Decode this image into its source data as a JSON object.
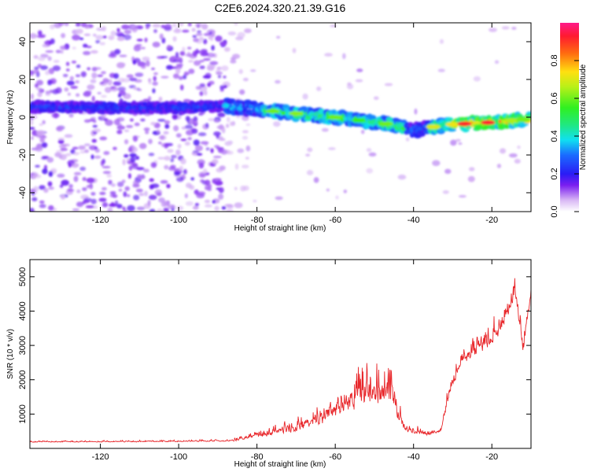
{
  "title": "C2E6.2024.320.21.39.G16",
  "chart_data": [
    {
      "type": "heatmap",
      "xlabel": "Height of straight line (km)",
      "ylabel": "Frequency (Hz)",
      "xlim": [
        -138,
        -10
      ],
      "ylim": [
        -50,
        50
      ],
      "x_ticks": [
        -120,
        -100,
        -80,
        -60,
        -40,
        -20
      ],
      "y_ticks": [
        -40,
        -20,
        0,
        20,
        40
      ],
      "colorbar": {
        "label": "Normalized spectral amplitude",
        "range": [
          0,
          1
        ],
        "ticks": [
          0,
          0.2,
          0.4,
          0.6,
          0.8
        ],
        "tick_labels": [
          "0.0",
          "0.2",
          "0.4",
          "0.6",
          "0.8"
        ]
      },
      "ridge": [
        {
          "x": -138,
          "y": 5.5
        },
        {
          "x": -100,
          "y": 5
        },
        {
          "x": -88,
          "y": 6
        },
        {
          "x": -75,
          "y": 3
        },
        {
          "x": -60,
          "y": 0
        },
        {
          "x": -45,
          "y": -4
        },
        {
          "x": -40,
          "y": -7
        },
        {
          "x": -32,
          "y": -4
        },
        {
          "x": -22,
          "y": -3
        },
        {
          "x": -10,
          "y": -1
        }
      ]
    },
    {
      "type": "line",
      "xlabel": "Height of straight line (km)",
      "ylabel": "SNR (10 * v/v)",
      "xlim": [
        -138,
        -10
      ],
      "ylim": [
        0,
        5500
      ],
      "x_ticks": [
        -120,
        -100,
        -80,
        -60,
        -40,
        -20
      ],
      "y_ticks": [
        1000,
        2000,
        3000,
        4000,
        5000
      ],
      "series": [
        {
          "color": "#e8262a",
          "envelope": [
            {
              "x": -138,
              "base": 180,
              "amp": 60
            },
            {
              "x": -100,
              "base": 190,
              "amp": 70
            },
            {
              "x": -86,
              "base": 210,
              "amp": 110
            },
            {
              "x": -78,
              "base": 350,
              "amp": 350
            },
            {
              "x": -70,
              "base": 500,
              "amp": 550
            },
            {
              "x": -64,
              "base": 700,
              "amp": 800
            },
            {
              "x": -58,
              "base": 1000,
              "amp": 1100
            },
            {
              "x": -54,
              "base": 1200,
              "amp": 1900
            },
            {
              "x": -50,
              "base": 1300,
              "amp": 1700
            },
            {
              "x": -46,
              "base": 1300,
              "amp": 1900
            },
            {
              "x": -44,
              "base": 800,
              "amp": 900
            },
            {
              "x": -42,
              "base": 450,
              "amp": 350
            },
            {
              "x": -36,
              "base": 380,
              "amp": 250
            },
            {
              "x": -33,
              "base": 500,
              "amp": 300
            },
            {
              "x": -31,
              "base": 1500,
              "amp": 700
            },
            {
              "x": -28,
              "base": 2400,
              "amp": 700
            },
            {
              "x": -24,
              "base": 2700,
              "amp": 700
            },
            {
              "x": -20,
              "base": 3000,
              "amp": 1000
            },
            {
              "x": -16,
              "base": 3800,
              "amp": 900
            },
            {
              "x": -14,
              "base": 4300,
              "amp": 1000
            },
            {
              "x": -13,
              "base": 3500,
              "amp": 800
            },
            {
              "x": -12,
              "base": 2700,
              "amp": 900
            },
            {
              "x": -11,
              "base": 3700,
              "amp": 900
            },
            {
              "x": -10,
              "base": 4500,
              "amp": 600
            }
          ]
        }
      ]
    }
  ]
}
